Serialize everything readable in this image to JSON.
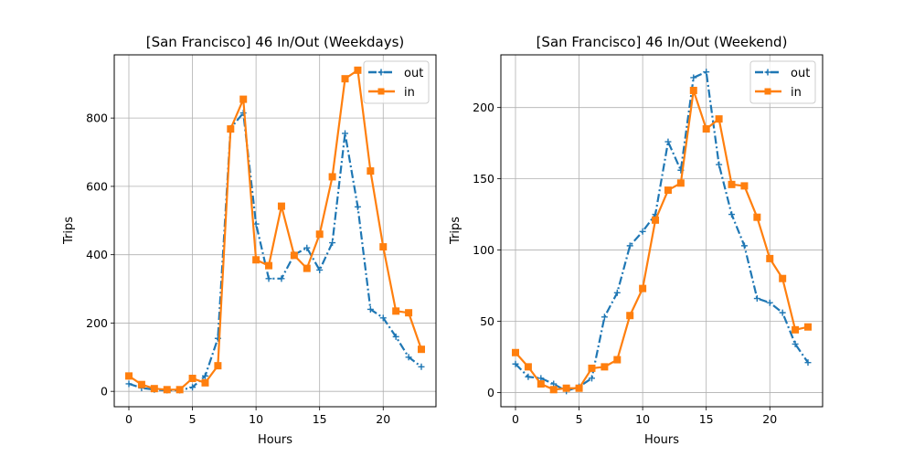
{
  "chart_data": [
    {
      "type": "line",
      "title": "[San Francisco] 46 In/Out (Weekdays)",
      "xlabel": "Hours",
      "ylabel": "Trips",
      "xlim": [
        -1.15,
        24.15
      ],
      "ylim": [
        -45,
        985
      ],
      "xticks": [
        0,
        5,
        10,
        15,
        20
      ],
      "yticks": [
        0,
        200,
        400,
        600,
        800
      ],
      "grid": true,
      "legend": "top-right",
      "x": [
        0,
        1,
        2,
        3,
        4,
        5,
        6,
        7,
        8,
        9,
        10,
        11,
        12,
        13,
        14,
        15,
        16,
        17,
        18,
        19,
        20,
        21,
        22,
        23
      ],
      "series": [
        {
          "name": "out",
          "color": "#1f77b4",
          "style": "dashdot",
          "marker": "plus",
          "values": [
            22,
            10,
            5,
            3,
            3,
            12,
            45,
            155,
            770,
            815,
            490,
            330,
            330,
            400,
            420,
            355,
            435,
            755,
            540,
            240,
            215,
            160,
            100,
            72
          ]
        },
        {
          "name": "in",
          "color": "#ff7f0e",
          "style": "solid",
          "marker": "square",
          "values": [
            45,
            20,
            8,
            5,
            5,
            38,
            25,
            75,
            768,
            855,
            385,
            368,
            542,
            398,
            360,
            460,
            628,
            915,
            940,
            645,
            423,
            235,
            230,
            123
          ]
        }
      ]
    },
    {
      "type": "line",
      "title": "[San Francisco] 46 In/Out (Weekend)",
      "xlabel": "Hours",
      "ylabel": "Trips",
      "xlim": [
        -1.15,
        24.15
      ],
      "ylim": [
        -10,
        237
      ],
      "xticks": [
        0,
        5,
        10,
        15,
        20
      ],
      "yticks": [
        0,
        50,
        100,
        150,
        200
      ],
      "grid": true,
      "legend": "top-right",
      "x": [
        0,
        1,
        2,
        3,
        4,
        5,
        6,
        7,
        8,
        9,
        10,
        11,
        12,
        13,
        14,
        15,
        16,
        17,
        18,
        19,
        20,
        21,
        22,
        23
      ],
      "series": [
        {
          "name": "out",
          "color": "#1f77b4",
          "style": "dashdot",
          "marker": "plus",
          "values": [
            20,
            11,
            10,
            6,
            1,
            4,
            10,
            53,
            70,
            103,
            113,
            125,
            176,
            156,
            221,
            225,
            160,
            125,
            103,
            66,
            63,
            56,
            34,
            21
          ]
        },
        {
          "name": "in",
          "color": "#ff7f0e",
          "style": "solid",
          "marker": "square",
          "values": [
            28,
            18,
            6,
            2,
            3,
            3,
            17,
            18,
            23,
            54,
            73,
            121,
            142,
            147,
            212,
            185,
            192,
            146,
            145,
            123,
            94,
            80,
            44,
            46
          ]
        }
      ]
    }
  ]
}
